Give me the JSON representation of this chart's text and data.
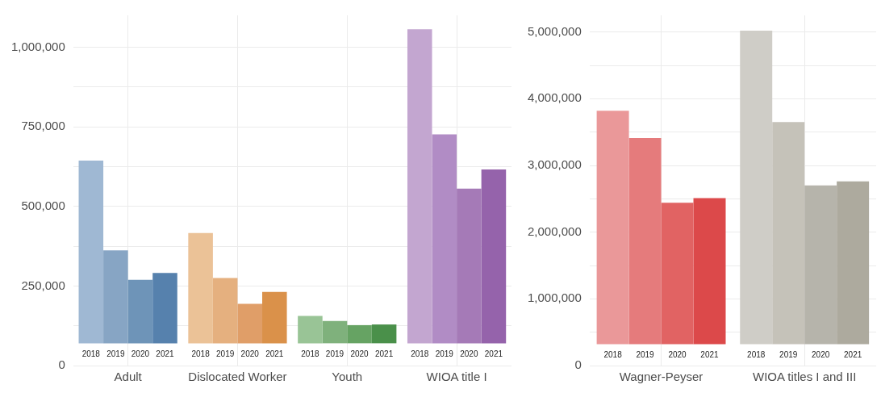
{
  "chart_data": [
    {
      "type": "bar",
      "categories": [
        "Adult",
        "Dislocated Worker",
        "Youth",
        "WIOA title I"
      ],
      "series": [
        {
          "name": "2018",
          "colors": [
            "#9fb8d3",
            "#ebc297",
            "#99c496",
            "#c3a6d0"
          ],
          "base": [
            70000,
            70000,
            70000,
            70000
          ],
          "values": [
            574000,
            346000,
            86000,
            986000
          ]
        },
        {
          "name": "2019",
          "colors": [
            "#87a5c4",
            "#e5b07f",
            "#7fb17c",
            "#b18cc5"
          ],
          "base": [
            70000,
            70000,
            70000,
            70000
          ],
          "values": [
            292000,
            205000,
            70000,
            656000
          ]
        },
        {
          "name": "2020",
          "colors": [
            "#6e94b8",
            "#e09e68",
            "#66a363",
            "#a57ab7"
          ],
          "base": [
            70000,
            70000,
            70000,
            70000
          ],
          "values": [
            199000,
            124000,
            57000,
            486000
          ]
        },
        {
          "name": "2021",
          "colors": [
            "#5681ad",
            "#da914a",
            "#4a904a",
            "#9563ab"
          ],
          "base": [
            70000,
            70000,
            70000,
            70000
          ],
          "values": [
            221000,
            161000,
            59000,
            546000
          ]
        }
      ],
      "ylim": [
        0,
        1100000
      ],
      "yticks": [
        0,
        {
          "value": 125000,
          "label": null
        },
        {
          "value": 250000,
          "label": "250,000"
        },
        {
          "value": 375000,
          "label": null
        },
        {
          "value": 500000,
          "label": "500,000"
        },
        {
          "value": 625000,
          "label": null
        },
        {
          "value": 750000,
          "label": "750,000"
        },
        {
          "value": 875000,
          "label": null
        },
        {
          "value": 1000000,
          "label": "1,000,000"
        }
      ],
      "grid": true
    },
    {
      "type": "bar",
      "categories": [
        "Wagner-Peyser",
        "WIOA titles I and III"
      ],
      "series": [
        {
          "name": "2018",
          "colors": [
            "#ea9899",
            "#cfcdc7"
          ],
          "base": [
            320000,
            320000
          ],
          "values": [
            3500000,
            4700000
          ]
        },
        {
          "name": "2019",
          "colors": [
            "#e57b7c",
            "#c5c2b9"
          ],
          "base": [
            320000,
            320000
          ],
          "values": [
            3090000,
            3330000
          ]
        },
        {
          "name": "2020",
          "colors": [
            "#e16363",
            "#b6b4ab"
          ],
          "base": [
            320000,
            320000
          ],
          "values": [
            2120000,
            2380000
          ]
        },
        {
          "name": "2021",
          "colors": [
            "#dc494a",
            "#adaa9e"
          ],
          "base": [
            320000,
            320000
          ],
          "values": [
            2190000,
            2440000
          ]
        }
      ],
      "ylim": [
        0,
        5250000
      ],
      "yticks": [
        0,
        {
          "value": 500000,
          "label": null
        },
        {
          "value": 1000000,
          "label": "1,000,000"
        },
        {
          "value": 1500000,
          "label": null
        },
        {
          "value": 2000000,
          "label": "2,000,000"
        },
        {
          "value": 2500000,
          "label": null
        },
        {
          "value": 3000000,
          "label": "3,000,000"
        },
        {
          "value": 3500000,
          "label": null
        },
        {
          "value": 4000000,
          "label": "4,000,000"
        },
        {
          "value": 4500000,
          "label": null
        },
        {
          "value": 5000000,
          "label": "5,000,000"
        }
      ],
      "grid": true
    }
  ]
}
